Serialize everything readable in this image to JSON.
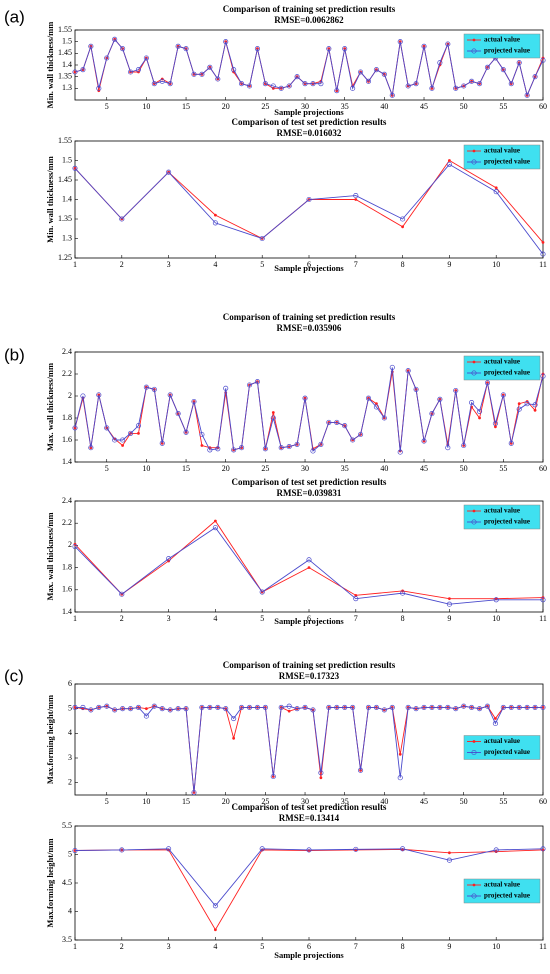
{
  "panel_labels": [
    "(a)",
    "(b)",
    "(c)"
  ],
  "chart_data": [
    {
      "type": "line",
      "title": "Comparison of training set prediction results",
      "subtitle": "RMSE=0.0062862",
      "xlabel": "Sample projections",
      "ylabel": "Min. wall thickness/mm",
      "x": [
        1,
        2,
        3,
        4,
        5,
        6,
        7,
        8,
        9,
        10,
        11,
        12,
        13,
        14,
        15,
        16,
        17,
        18,
        19,
        20,
        21,
        22,
        23,
        24,
        25,
        26,
        27,
        28,
        29,
        30,
        31,
        32,
        33,
        34,
        35,
        36,
        37,
        38,
        39,
        40,
        41,
        42,
        43,
        44,
        45,
        46,
        47,
        48,
        49,
        50,
        51,
        52,
        53,
        54,
        55,
        56,
        57,
        58,
        59,
        60
      ],
      "xlim": [
        1,
        60
      ],
      "xticks": [
        5,
        10,
        15,
        20,
        25,
        30,
        35,
        40,
        45,
        50,
        55,
        60
      ],
      "ylim": [
        1.25,
        1.55
      ],
      "yticks": [
        1.3,
        1.35,
        1.4,
        1.45,
        1.5,
        1.55
      ],
      "legend": "upper right",
      "series": [
        {
          "name": "actual value",
          "color": "#ff2020",
          "values": [
            1.37,
            1.38,
            1.48,
            1.29,
            1.43,
            1.51,
            1.47,
            1.37,
            1.37,
            1.43,
            1.32,
            1.34,
            1.32,
            1.48,
            1.47,
            1.36,
            1.36,
            1.39,
            1.34,
            1.5,
            1.37,
            1.32,
            1.31,
            1.47,
            1.32,
            1.3,
            1.3,
            1.31,
            1.35,
            1.32,
            1.32,
            1.33,
            1.47,
            1.29,
            1.47,
            1.31,
            1.37,
            1.33,
            1.38,
            1.36,
            1.27,
            1.5,
            1.31,
            1.32,
            1.48,
            1.3,
            1.4,
            1.49,
            1.3,
            1.31,
            1.33,
            1.32,
            1.39,
            1.43,
            1.38,
            1.32,
            1.41,
            1.27,
            1.35,
            1.43
          ]
        },
        {
          "name": "projected value",
          "color": "#4a4acc",
          "values": [
            1.37,
            1.38,
            1.48,
            1.3,
            1.43,
            1.51,
            1.47,
            1.37,
            1.38,
            1.43,
            1.32,
            1.33,
            1.32,
            1.48,
            1.47,
            1.36,
            1.36,
            1.39,
            1.34,
            1.5,
            1.38,
            1.32,
            1.31,
            1.47,
            1.32,
            1.31,
            1.3,
            1.31,
            1.35,
            1.32,
            1.32,
            1.32,
            1.47,
            1.29,
            1.47,
            1.3,
            1.37,
            1.33,
            1.38,
            1.36,
            1.27,
            1.5,
            1.31,
            1.32,
            1.48,
            1.3,
            1.41,
            1.49,
            1.3,
            1.31,
            1.33,
            1.32,
            1.39,
            1.43,
            1.38,
            1.32,
            1.41,
            1.27,
            1.35,
            1.42
          ]
        }
      ]
    },
    {
      "type": "line",
      "title": "Comparison of test set prediction results",
      "subtitle": "RMSE=0.016032",
      "xlabel": "Sample projections",
      "ylabel": "Min. wall thickness/mm",
      "x": [
        1,
        2,
        3,
        4,
        5,
        6,
        7,
        8,
        9,
        10,
        11
      ],
      "xlim": [
        1,
        11
      ],
      "xticks": [
        1,
        2,
        3,
        4,
        5,
        6,
        7,
        8,
        9,
        10,
        11
      ],
      "ylim": [
        1.25,
        1.55
      ],
      "yticks": [
        1.25,
        1.3,
        1.35,
        1.4,
        1.45,
        1.5,
        1.55
      ],
      "legend": "upper right",
      "series": [
        {
          "name": "actual value",
          "color": "#ff2020",
          "values": [
            1.48,
            1.35,
            1.47,
            1.36,
            1.3,
            1.4,
            1.4,
            1.33,
            1.5,
            1.43,
            1.29
          ]
        },
        {
          "name": "projected value",
          "color": "#4a4acc",
          "values": [
            1.48,
            1.35,
            1.47,
            1.34,
            1.3,
            1.4,
            1.41,
            1.35,
            1.49,
            1.42,
            1.26
          ]
        }
      ]
    },
    {
      "type": "line",
      "title": "Comparison of training set prediction results",
      "subtitle": "RMSE=0.035906",
      "ylabel": "Max. wall thickness/mm",
      "x": [
        1,
        2,
        3,
        4,
        5,
        6,
        7,
        8,
        9,
        10,
        11,
        12,
        13,
        14,
        15,
        16,
        17,
        18,
        19,
        20,
        21,
        22,
        23,
        24,
        25,
        26,
        27,
        28,
        29,
        30,
        31,
        32,
        33,
        34,
        35,
        36,
        37,
        38,
        39,
        40,
        41,
        42,
        43,
        44,
        45,
        46,
        47,
        48,
        49,
        50,
        51,
        52,
        53,
        54,
        55,
        56,
        57,
        58,
        59,
        60
      ],
      "xlim": [
        1,
        60
      ],
      "xticks": [
        5,
        10,
        15,
        20,
        25,
        30,
        35,
        40,
        45,
        50,
        55,
        60
      ],
      "ylim": [
        1.4,
        2.4
      ],
      "yticks": [
        1.4,
        1.6,
        1.8,
        2,
        2.2,
        2.4
      ],
      "legend": "upper right",
      "series": [
        {
          "name": "actual value",
          "color": "#ff2020",
          "values": [
            1.71,
            1.98,
            1.53,
            2.01,
            1.71,
            1.61,
            1.55,
            1.66,
            1.66,
            2.08,
            2.06,
            1.57,
            2.01,
            1.84,
            1.67,
            1.95,
            1.55,
            1.53,
            1.53,
            2.03,
            1.51,
            1.53,
            2.1,
            2.13,
            1.52,
            1.85,
            1.53,
            1.54,
            1.56,
            1.98,
            1.52,
            1.56,
            1.76,
            1.76,
            1.73,
            1.6,
            1.65,
            1.98,
            1.93,
            1.8,
            2.22,
            1.5,
            2.23,
            2.06,
            1.59,
            1.84,
            1.97,
            1.56,
            2.05,
            1.55,
            1.9,
            1.8,
            2.12,
            1.72,
            2.01,
            1.57,
            1.93,
            1.95,
            1.87,
            2.2
          ]
        },
        {
          "name": "projected value",
          "color": "#4a4acc",
          "values": [
            1.71,
            2.0,
            1.53,
            2.01,
            1.71,
            1.6,
            1.6,
            1.66,
            1.73,
            2.08,
            2.06,
            1.57,
            2.01,
            1.84,
            1.67,
            1.95,
            1.65,
            1.51,
            1.52,
            2.07,
            1.51,
            1.53,
            2.1,
            2.13,
            1.52,
            1.8,
            1.53,
            1.54,
            1.56,
            1.98,
            1.5,
            1.56,
            1.76,
            1.76,
            1.73,
            1.6,
            1.65,
            1.98,
            1.9,
            1.8,
            2.26,
            1.49,
            2.23,
            2.06,
            1.59,
            1.84,
            1.97,
            1.53,
            2.05,
            1.55,
            1.94,
            1.86,
            2.12,
            1.75,
            2.01,
            1.57,
            1.88,
            1.93,
            1.92,
            2.18
          ]
        }
      ]
    },
    {
      "type": "line",
      "title": "Comparison of test set prediction results",
      "subtitle": "RMSE=0.039831",
      "xlabel": "Sample projections",
      "ylabel": "Max. wall thickness/mm",
      "x": [
        1,
        2,
        3,
        4,
        5,
        6,
        7,
        8,
        9,
        10,
        11
      ],
      "xlim": [
        1,
        11
      ],
      "xticks": [
        1,
        2,
        3,
        4,
        5,
        6,
        7,
        8,
        9,
        10,
        11
      ],
      "ylim": [
        1.4,
        2.4
      ],
      "yticks": [
        1.4,
        1.6,
        1.8,
        2,
        2.2,
        2.4
      ],
      "legend": "upper right",
      "series": [
        {
          "name": "actual value",
          "color": "#ff2020",
          "values": [
            2.01,
            1.56,
            1.86,
            2.22,
            1.58,
            1.8,
            1.55,
            1.59,
            1.52,
            1.52,
            1.53
          ]
        },
        {
          "name": "projected value",
          "color": "#4a4acc",
          "values": [
            1.99,
            1.56,
            1.88,
            2.16,
            1.58,
            1.87,
            1.52,
            1.57,
            1.47,
            1.51,
            1.51
          ]
        }
      ]
    },
    {
      "type": "line",
      "title": "Comparison of training set prediction results",
      "subtitle": "RMSE=0.17323",
      "ylabel": "Max.forming height/mm",
      "x": [
        1,
        2,
        3,
        4,
        5,
        6,
        7,
        8,
        9,
        10,
        11,
        12,
        13,
        14,
        15,
        16,
        17,
        18,
        19,
        20,
        21,
        22,
        23,
        24,
        25,
        26,
        27,
        28,
        29,
        30,
        31,
        32,
        33,
        34,
        35,
        36,
        37,
        38,
        39,
        40,
        41,
        42,
        43,
        44,
        45,
        46,
        47,
        48,
        49,
        50,
        51,
        52,
        53,
        54,
        55,
        56,
        57,
        58,
        59,
        60
      ],
      "xlim": [
        1,
        60
      ],
      "xticks": [
        5,
        10,
        15,
        20,
        25,
        30,
        35,
        40,
        45,
        50,
        55,
        60
      ],
      "ylim": [
        1.5,
        6
      ],
      "yticks": [
        2,
        3,
        4,
        5,
        6
      ],
      "legend": "center right",
      "series": [
        {
          "name": "actual value",
          "color": "#ff2020",
          "values": [
            5.05,
            5.0,
            4.95,
            5.05,
            5.1,
            4.95,
            5.0,
            5.0,
            5.05,
            5.0,
            5.1,
            5.0,
            4.95,
            5.0,
            5.0,
            1.6,
            5.05,
            5.05,
            5.05,
            5.0,
            3.8,
            5.05,
            5.05,
            5.05,
            5.05,
            2.25,
            5.05,
            4.9,
            5.0,
            5.05,
            4.95,
            2.2,
            5.05,
            5.05,
            5.05,
            5.05,
            2.5,
            5.05,
            5.05,
            4.95,
            5.05,
            3.15,
            5.05,
            5.0,
            5.05,
            5.05,
            5.05,
            5.05,
            5.0,
            5.1,
            5.05,
            5.0,
            5.1,
            4.6,
            5.05,
            5.05,
            5.05,
            5.05,
            5.05,
            5.05
          ]
        },
        {
          "name": "projected value",
          "color": "#4a4acc",
          "values": [
            5.05,
            5.05,
            4.95,
            5.05,
            5.1,
            4.95,
            5.0,
            5.0,
            5.05,
            4.7,
            5.1,
            5.0,
            4.95,
            5.0,
            5.0,
            1.6,
            5.05,
            5.05,
            5.05,
            5.0,
            4.6,
            5.05,
            5.05,
            5.05,
            5.05,
            2.25,
            5.05,
            5.1,
            5.0,
            5.05,
            4.95,
            2.4,
            5.05,
            5.05,
            5.05,
            5.05,
            2.5,
            5.05,
            5.05,
            4.95,
            5.05,
            2.2,
            5.05,
            5.0,
            5.05,
            5.05,
            5.05,
            5.05,
            5.0,
            5.1,
            5.05,
            5.0,
            5.1,
            4.4,
            5.05,
            5.05,
            5.05,
            5.05,
            5.05,
            5.05
          ]
        }
      ]
    },
    {
      "type": "line",
      "title": "Comparison of test set prediction results",
      "subtitle": "RMSE=0.13414",
      "xlabel": "Sample projections",
      "ylabel": "Max.forming height/mm",
      "x": [
        1,
        2,
        3,
        4,
        5,
        6,
        7,
        8,
        9,
        10,
        11
      ],
      "xlim": [
        1,
        11
      ],
      "xticks": [
        1,
        2,
        3,
        4,
        5,
        6,
        7,
        8,
        9,
        10,
        11
      ],
      "ylim": [
        3.5,
        5.5
      ],
      "yticks": [
        3.5,
        4,
        4.5,
        5,
        5.5
      ],
      "legend": "center right",
      "series": [
        {
          "name": "actual value",
          "color": "#ff2020",
          "values": [
            5.07,
            5.08,
            5.08,
            3.68,
            5.08,
            5.07,
            5.08,
            5.09,
            5.03,
            5.05,
            5.08
          ]
        },
        {
          "name": "projected value",
          "color": "#4a4acc",
          "values": [
            5.07,
            5.08,
            5.1,
            4.1,
            5.1,
            5.08,
            5.09,
            5.1,
            4.9,
            5.08,
            5.1
          ]
        }
      ]
    }
  ]
}
